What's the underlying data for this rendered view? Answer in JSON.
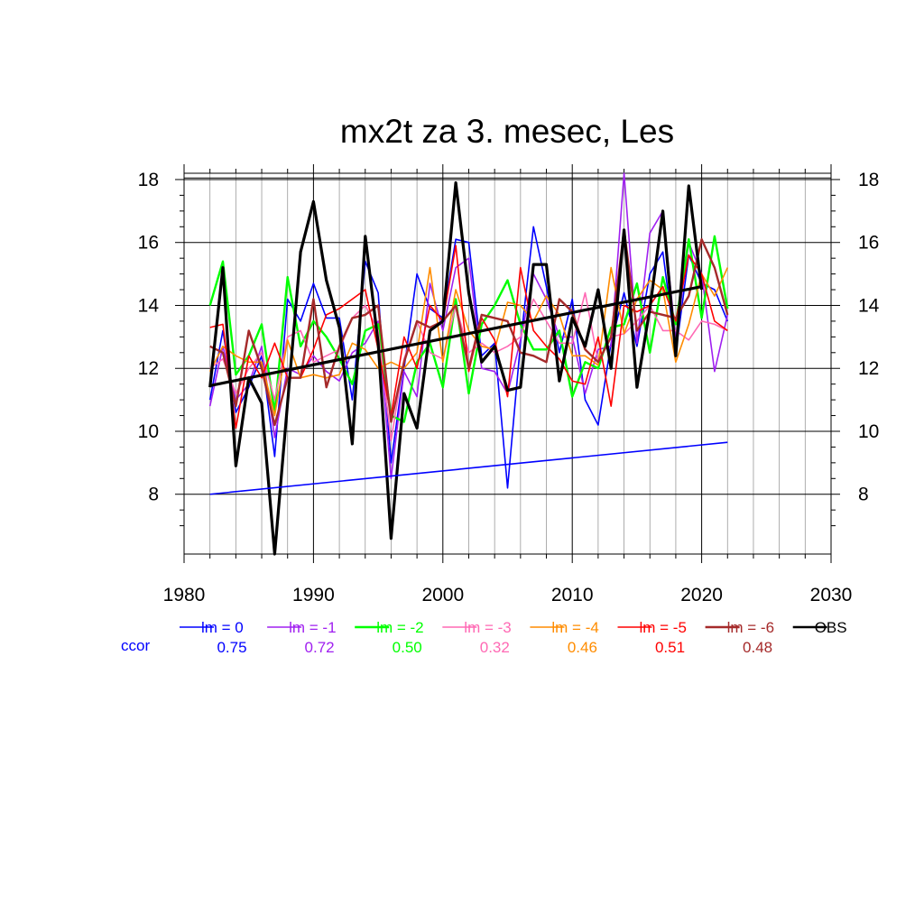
{
  "chart_data": {
    "type": "line",
    "title": "mx2t za 3. mesec, Les",
    "xlabel": "",
    "ylabel": "",
    "xlim": [
      1980,
      2030
    ],
    "ylim": [
      6.1,
      18.2
    ],
    "x_ticks": [
      "1980",
      "1990",
      "2000",
      "2010",
      "2020",
      "2030"
    ],
    "y_ticks": [
      "8",
      "10",
      "12",
      "14",
      "16",
      "18"
    ],
    "grid": true,
    "legend_position": "bottom",
    "ccor_label": "ccor",
    "x": [
      1982,
      1983,
      1984,
      1985,
      1986,
      1987,
      1988,
      1989,
      1990,
      1991,
      1992,
      1993,
      1994,
      1995,
      1996,
      1997,
      1998,
      1999,
      2000,
      2001,
      2002,
      2003,
      2004,
      2005,
      2006,
      2007,
      2008,
      2009,
      2010,
      2011,
      2012,
      2013,
      2014,
      2015,
      2016,
      2017,
      2018,
      2019,
      2020,
      2021,
      2022
    ],
    "series": [
      {
        "name": "lm = 0",
        "ccor": "0.75",
        "color": "#0000ff",
        "width": 1.6,
        "values": [
          11.0,
          13.2,
          10.6,
          11.4,
          12.4,
          9.2,
          14.2,
          13.5,
          14.7,
          13.6,
          13.6,
          11.0,
          15.4,
          14.4,
          9.0,
          12.0,
          15.0,
          13.9,
          13.6,
          16.1,
          16.0,
          12.4,
          12.8,
          8.2,
          12.8,
          16.5,
          14.6,
          12.5,
          14.2,
          11.0,
          10.2,
          12.8,
          14.4,
          12.7,
          15.0,
          15.7,
          12.5,
          15.6,
          14.7,
          14.5,
          13.5
        ]
      },
      {
        "name": "lm = -1",
        "ccor": "0.72",
        "color": "#a020f0",
        "width": 1.6,
        "values": [
          10.8,
          12.7,
          11.0,
          11.5,
          12.7,
          9.8,
          12.0,
          11.8,
          12.4,
          11.9,
          11.6,
          12.5,
          12.8,
          13.5,
          8.5,
          11.9,
          11.1,
          14.7,
          13.2,
          15.2,
          15.5,
          12.0,
          11.9,
          11.2,
          12.9,
          15.0,
          14.2,
          13.0,
          13.0,
          11.2,
          12.6,
          12.7,
          18.2,
          12.8,
          16.3,
          17.0,
          12.9,
          16.0,
          15.0,
          11.9,
          13.7
        ]
      },
      {
        "name": "lm = -2",
        "ccor": "0.50",
        "color": "#00ff00",
        "width": 2.4,
        "values": [
          14.0,
          15.4,
          11.8,
          12.4,
          13.4,
          10.6,
          14.9,
          12.7,
          13.5,
          13.0,
          12.3,
          11.5,
          13.2,
          13.4,
          10.5,
          10.3,
          12.2,
          12.8,
          11.4,
          14.2,
          11.2,
          13.4,
          14.0,
          14.8,
          13.4,
          12.6,
          12.6,
          13.2,
          11.1,
          12.2,
          12.0,
          13.3,
          13.4,
          14.7,
          12.5,
          14.9,
          13.4,
          16.1,
          13.6,
          16.2,
          13.9
        ]
      },
      {
        "name": "lm = -3",
        "ccor": "0.32",
        "color": "#ff69b4",
        "width": 1.6,
        "values": [
          12.0,
          12.3,
          11.2,
          12.0,
          12.5,
          11.0,
          13.0,
          13.2,
          12.2,
          12.4,
          12.6,
          13.6,
          14.0,
          13.2,
          9.7,
          12.3,
          13.5,
          12.5,
          12.3,
          14.0,
          12.5,
          12.8,
          12.5,
          12.7,
          13.0,
          14.2,
          13.5,
          12.8,
          12.8,
          14.4,
          12.2,
          13.0,
          13.1,
          13.5,
          14.0,
          13.2,
          13.2,
          12.9,
          13.5,
          13.4,
          13.2
        ]
      },
      {
        "name": "lm = -4",
        "ccor": "0.46",
        "color": "#ff8c00",
        "width": 1.6,
        "values": [
          11.9,
          12.7,
          12.4,
          12.2,
          12.2,
          10.5,
          12.9,
          11.7,
          11.8,
          11.7,
          11.8,
          12.8,
          12.6,
          12.0,
          12.2,
          12.0,
          12.5,
          15.2,
          12.2,
          14.5,
          13.2,
          12.7,
          12.6,
          14.1,
          14.0,
          13.5,
          14.3,
          13.7,
          12.4,
          12.4,
          12.1,
          15.2,
          13.1,
          14.2,
          14.8,
          14.5,
          12.2,
          13.4,
          15.0,
          14.3,
          15.2
        ]
      },
      {
        "name": "lm = -5",
        "ccor": "0.51",
        "color": "#ff0000",
        "width": 1.6,
        "values": [
          13.3,
          13.4,
          10.1,
          12.4,
          11.7,
          12.8,
          11.7,
          11.7,
          12.6,
          13.7,
          13.9,
          14.2,
          14.5,
          12.6,
          10.5,
          13.0,
          12.0,
          14.0,
          13.5,
          15.9,
          11.9,
          13.6,
          12.9,
          11.1,
          15.2,
          13.2,
          12.7,
          12.3,
          11.6,
          11.5,
          13.0,
          10.8,
          14.0,
          13.8,
          14.0,
          14.6,
          13.5,
          15.6,
          15.0,
          13.5,
          13.2
        ]
      },
      {
        "name": "lm = -6",
        "ccor": "0.48",
        "color": "#a52a2a",
        "width": 2.4,
        "values": [
          12.7,
          12.5,
          10.8,
          13.2,
          12.0,
          10.2,
          11.7,
          11.7,
          14.2,
          11.4,
          12.7,
          13.6,
          13.7,
          14.0,
          10.3,
          12.2,
          13.5,
          13.3,
          13.5,
          14.0,
          12.0,
          13.7,
          13.6,
          13.5,
          12.5,
          12.4,
          12.2,
          14.2,
          13.8,
          12.6,
          12.2,
          13.0,
          16.4,
          13.2,
          13.8,
          13.7,
          13.6,
          14.3,
          16.1,
          15.2,
          13.7
        ]
      },
      {
        "name": "OBS",
        "ccor": "",
        "color": "#000000",
        "width": 3.2,
        "values": [
          11.4,
          15.2,
          8.9,
          11.7,
          10.9,
          6.1,
          10.9,
          15.7,
          17.3,
          14.8,
          13.3,
          9.6,
          16.2,
          12.8,
          6.6,
          11.2,
          10.1,
          13.2,
          13.5,
          17.9,
          14.4,
          12.2,
          12.7,
          11.3,
          11.4,
          15.3,
          15.3,
          11.6,
          13.6,
          12.7,
          14.5,
          12.0,
          16.4,
          11.4,
          13.9,
          17.0,
          12.4,
          17.8,
          14.5,
          null,
          null
        ]
      }
    ],
    "trend_lines": [
      {
        "color": "#0000ff",
        "width": 1.6,
        "x": [
          1982,
          2022
        ],
        "values": [
          8.0,
          9.65
        ]
      },
      {
        "color": "#000000",
        "width": 3.2,
        "x": [
          1982,
          2020
        ],
        "values": [
          11.45,
          14.6
        ]
      }
    ],
    "reference_lines_y": [
      18.2,
      18.05
    ]
  }
}
